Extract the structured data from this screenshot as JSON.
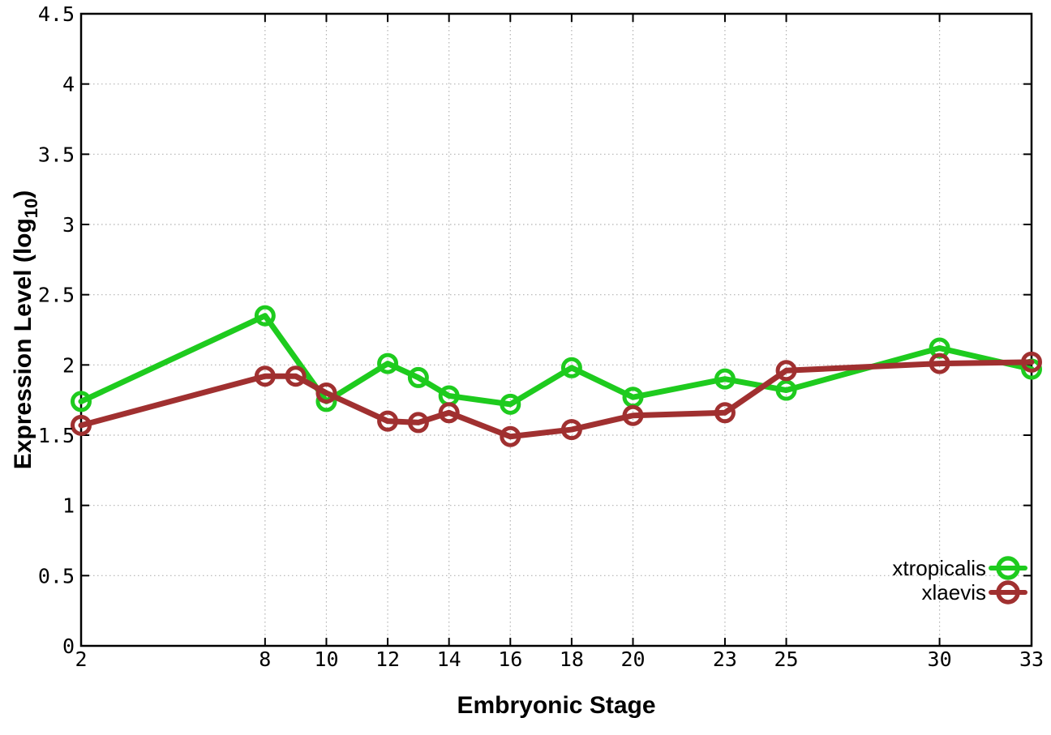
{
  "chart_data": {
    "type": "line",
    "title": "",
    "xlabel": "Embryonic Stage",
    "ylabel": "Expression Level (log10)",
    "ylabel_parts": {
      "pre": "Expression Level (log",
      "sub": "10",
      "post": ")"
    },
    "xlim": [
      2,
      33
    ],
    "ylim": [
      0,
      4.5
    ],
    "x_ticks": [
      2,
      8,
      10,
      12,
      14,
      16,
      18,
      20,
      23,
      25,
      30,
      33
    ],
    "y_ticks": [
      "0",
      "0.5",
      "1",
      "1.5",
      "2",
      "2.5",
      "3",
      "3.5",
      "4",
      "4.5"
    ],
    "grid": true,
    "grid_style": "dotted",
    "grid_color": "#b2b2b2",
    "axis_color": "#000000",
    "background": "#ffffff",
    "legend_position": "inside-bottom-right",
    "series": [
      {
        "name": "xtropicalis",
        "color": "#1ecb1e",
        "marker": "open-circle",
        "x": [
          2,
          8,
          10,
          12,
          13,
          14,
          16,
          18,
          20,
          23,
          25,
          30,
          33
        ],
        "y": [
          1.74,
          2.35,
          1.74,
          2.01,
          1.91,
          1.78,
          1.72,
          1.98,
          1.77,
          1.9,
          1.82,
          2.12,
          1.97
        ]
      },
      {
        "name": "xlaevis",
        "color": "#a03030",
        "marker": "open-circle",
        "x": [
          2,
          8,
          9,
          10,
          12,
          13,
          14,
          16,
          18,
          20,
          23,
          25,
          30,
          33
        ],
        "y": [
          1.57,
          1.92,
          1.92,
          1.8,
          1.6,
          1.59,
          1.66,
          1.49,
          1.54,
          1.64,
          1.66,
          1.96,
          2.01,
          2.02
        ]
      }
    ]
  }
}
